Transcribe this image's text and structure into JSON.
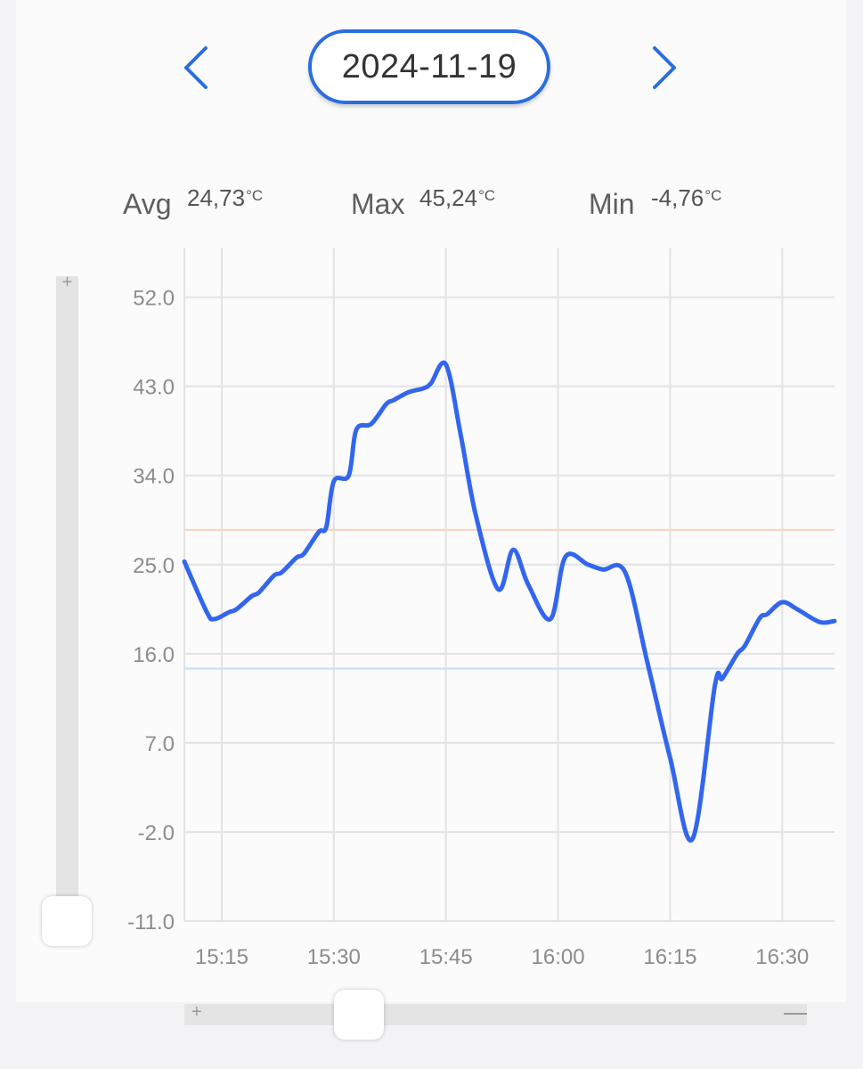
{
  "date_nav": {
    "date": "2024-11-19",
    "prev_icon": "chevron-left-icon",
    "next_icon": "chevron-right-icon",
    "accent_color": "#2b6de0"
  },
  "stats": {
    "avg": {
      "label": "Avg",
      "value": "24,73",
      "unit": "°C"
    },
    "max": {
      "label": "Max",
      "value": "45,24",
      "unit": "°C"
    },
    "min": {
      "label": "Min",
      "value": "-4,76",
      "unit": "°C"
    }
  },
  "zoom": {
    "plus": "+",
    "minus": "—"
  },
  "chart_data": {
    "type": "line",
    "title": "",
    "xlabel": "",
    "ylabel": "",
    "ylim": [
      -11,
      57
    ],
    "xlim": [
      "15:10",
      "16:37"
    ],
    "y_ticks": [
      "52.0",
      "43.0",
      "34.0",
      "25.0",
      "16.0",
      "7.0",
      "-2.0",
      "-11.0"
    ],
    "x_ticks": [
      "15:15",
      "15:30",
      "15:45",
      "16:00",
      "16:15",
      "16:30"
    ],
    "grid": true,
    "line_color": "#3366ee",
    "threshold_lines": [
      {
        "value": 28.5,
        "color": "#fcd0c0"
      },
      {
        "value": 14.5,
        "color": "#c8dcf6"
      }
    ],
    "series": [
      {
        "x": [
          "15:10",
          "15:13",
          "15:14",
          "15:16",
          "15:17",
          "15:19",
          "15:20",
          "15:22",
          "15:23",
          "15:25",
          "15:26",
          "15:28",
          "15:29",
          "15:30",
          "15:32",
          "15:33",
          "15:35",
          "15:37",
          "15:38",
          "15:40",
          "15:42",
          "15:43",
          "15:45",
          "15:47",
          "15:49",
          "15:52",
          "15:54",
          "15:56",
          "15:59",
          "16:01",
          "16:04",
          "16:06",
          "16:09",
          "16:12",
          "16:15",
          "16:18",
          "16:21",
          "16:22",
          "16:24",
          "16:25",
          "16:27",
          "16:28",
          "16:30",
          "16:32",
          "16:35",
          "16:37"
        ],
        "y": [
          25.3,
          20.2,
          19.5,
          20.2,
          20.5,
          21.8,
          22.2,
          23.9,
          24.2,
          25.7,
          26.1,
          28.3,
          28.8,
          33.4,
          34.0,
          38.6,
          39.2,
          41.2,
          41.6,
          42.4,
          42.8,
          43.3,
          45.2,
          38.0,
          30.0,
          22.5,
          26.5,
          23.0,
          19.5,
          25.8,
          25.0,
          24.5,
          24.2,
          15.0,
          5.5,
          -2.7,
          12.8,
          13.5,
          16.0,
          16.8,
          19.6,
          20.0,
          21.2,
          20.5,
          19.2,
          19.3
        ]
      }
    ]
  }
}
